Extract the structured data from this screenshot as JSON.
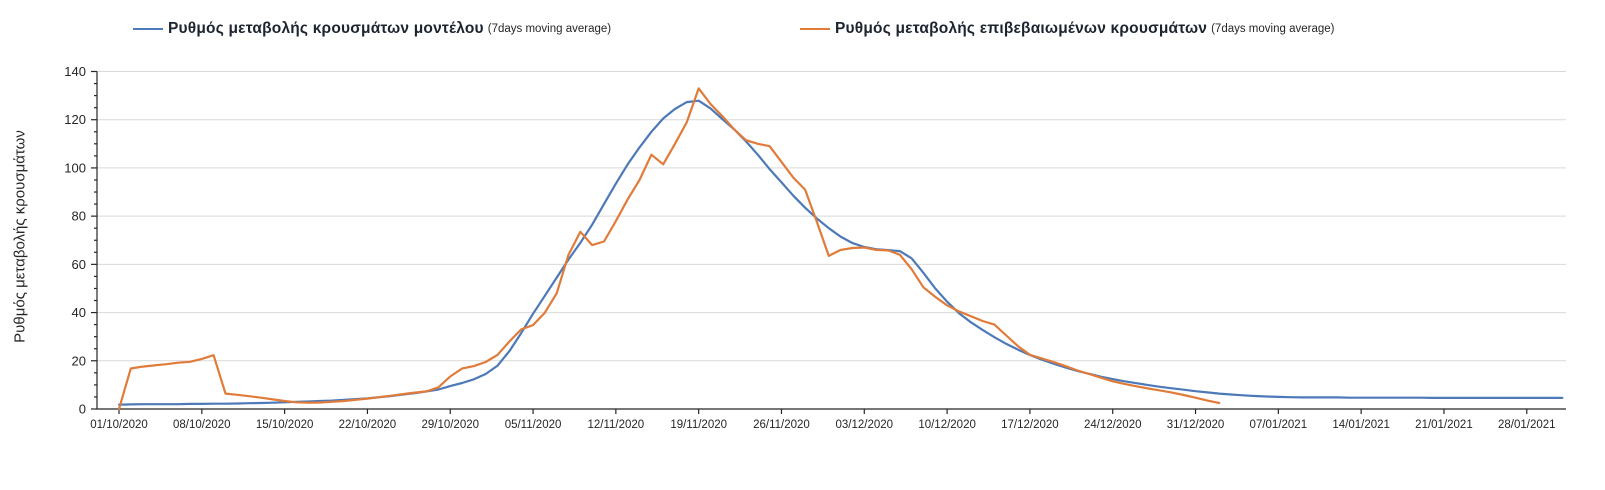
{
  "legend": {
    "entries": [
      {
        "label": "Ρυθμός μεταβολής κρουσμάτων μοντέλου",
        "sublabel": "(7days moving average)",
        "color": "#4d79b8"
      },
      {
        "label": "Ρυθμός μεταβολής επιβεβαιωμένων κρουσμάτων",
        "sublabel": "(7days moving average)",
        "color": "#e07b39"
      }
    ]
  },
  "y_axis": {
    "title": "Ρυθμός μεταβολής κρουσμάτων",
    "tick_labels": [
      "0",
      "20",
      "40",
      "60",
      "80",
      "100",
      "120",
      "140"
    ],
    "tick_values": [
      0,
      20,
      40,
      60,
      80,
      100,
      120,
      140
    ],
    "minor_step": 5,
    "min": 0,
    "max": 140
  },
  "x_axis": {
    "tick_labels": [
      "01/10/2020",
      "08/10/2020",
      "15/10/2020",
      "22/10/2020",
      "29/10/2020",
      "05/11/2020",
      "12/11/2020",
      "19/11/2020",
      "26/11/2020",
      "03/12/2020",
      "10/12/2020",
      "17/12/2020",
      "24/12/2020",
      "31/12/2020",
      "07/01/2021",
      "14/01/2021",
      "21/01/2021",
      "28/01/2021"
    ],
    "tick_days": [
      0,
      7,
      14,
      21,
      28,
      35,
      42,
      49,
      56,
      63,
      70,
      77,
      84,
      91,
      98,
      105,
      112,
      119
    ]
  },
  "colors": {
    "model_line": "#4d79b8",
    "confirmed_line": "#e07b39",
    "gridline": "#d9d9d9",
    "axis": "#262626",
    "tick_text": "#262626"
  },
  "chart_data": {
    "type": "line",
    "title": "",
    "ylabel": "Ρυθμός μεταβολής κρουσμάτων",
    "ylim": [
      0,
      140
    ],
    "grid": "horizontal",
    "x_unit": "days since 01/10/2020 (daily points, x ticks weekly)",
    "legend_position": "top",
    "series": [
      {
        "name": "Ρυθμός μεταβολής κρουσμάτων μοντέλου (7days moving average)",
        "color": "#4d79b8",
        "start_day": 0,
        "values": [
          1.8,
          1.9,
          2.0,
          2.0,
          2.0,
          2.0,
          2.1,
          2.1,
          2.2,
          2.2,
          2.3,
          2.4,
          2.5,
          2.6,
          2.8,
          3.0,
          3.1,
          3.3,
          3.5,
          3.8,
          4.1,
          4.4,
          4.9,
          5.4,
          6.0,
          6.6,
          7.3,
          8.1,
          9.5,
          10.8,
          12.3,
          14.5,
          18.0,
          24.0,
          31.5,
          39.5,
          47.0,
          54.5,
          62.0,
          69.0,
          76.5,
          85.0,
          93.5,
          101.5,
          108.5,
          115.0,
          120.5,
          124.5,
          127.3,
          127.9,
          124.7,
          120.3,
          116.0,
          111.0,
          105.5,
          99.5,
          94.0,
          88.5,
          83.5,
          79.0,
          75.0,
          71.5,
          68.8,
          67.2,
          66.3,
          65.9,
          65.5,
          62.5,
          56.5,
          50.0,
          44.5,
          39.8,
          36.0,
          32.8,
          29.8,
          27.0,
          24.6,
          22.4,
          20.5,
          18.8,
          17.2,
          15.8,
          14.6,
          13.4,
          12.4,
          11.5,
          10.7,
          9.9,
          9.2,
          8.6,
          8.0,
          7.4,
          6.9,
          6.4,
          6.0,
          5.7,
          5.4,
          5.2,
          5.0,
          4.9,
          4.8,
          4.8,
          4.8,
          4.8,
          4.7,
          4.7,
          4.7,
          4.7,
          4.7,
          4.7,
          4.7,
          4.6,
          4.6,
          4.6,
          4.6,
          4.6,
          4.6,
          4.6,
          4.6,
          4.6,
          4.6,
          4.6,
          4.6
        ]
      },
      {
        "name": "Ρυθμός μεταβολής επιβεβαιωμένων κρουσμάτων (7days moving average)",
        "color": "#e07b39",
        "start_day": 0,
        "values": [
          0.0,
          16.8,
          17.6,
          18.1,
          18.6,
          19.2,
          19.6,
          20.8,
          22.3,
          6.4,
          5.9,
          5.3,
          4.7,
          4.0,
          3.3,
          2.8,
          2.6,
          2.7,
          3.0,
          3.3,
          3.8,
          4.3,
          4.9,
          5.5,
          6.2,
          6.8,
          7.3,
          9.0,
          13.5,
          16.8,
          17.8,
          19.5,
          22.5,
          28.0,
          33.0,
          34.8,
          40.0,
          48.0,
          64.0,
          73.5,
          68.0,
          69.5,
          78.0,
          87.0,
          95.0,
          105.5,
          101.5,
          110.0,
          119.0,
          133.0,
          126.5,
          121.5,
          116.0,
          111.5,
          110.0,
          109.0,
          102.5,
          96.0,
          91.0,
          77.5,
          63.5,
          66.0,
          66.8,
          67.0,
          66.0,
          65.8,
          64.0,
          58.0,
          50.5,
          46.5,
          43.0,
          40.5,
          38.5,
          36.5,
          35.0,
          30.5,
          26.0,
          22.5,
          21.0,
          19.5,
          17.8,
          16.0,
          14.5,
          13.0,
          11.5,
          10.4,
          9.4,
          8.5,
          7.7,
          6.8,
          5.8,
          4.7,
          3.5,
          2.5
        ]
      }
    ]
  }
}
